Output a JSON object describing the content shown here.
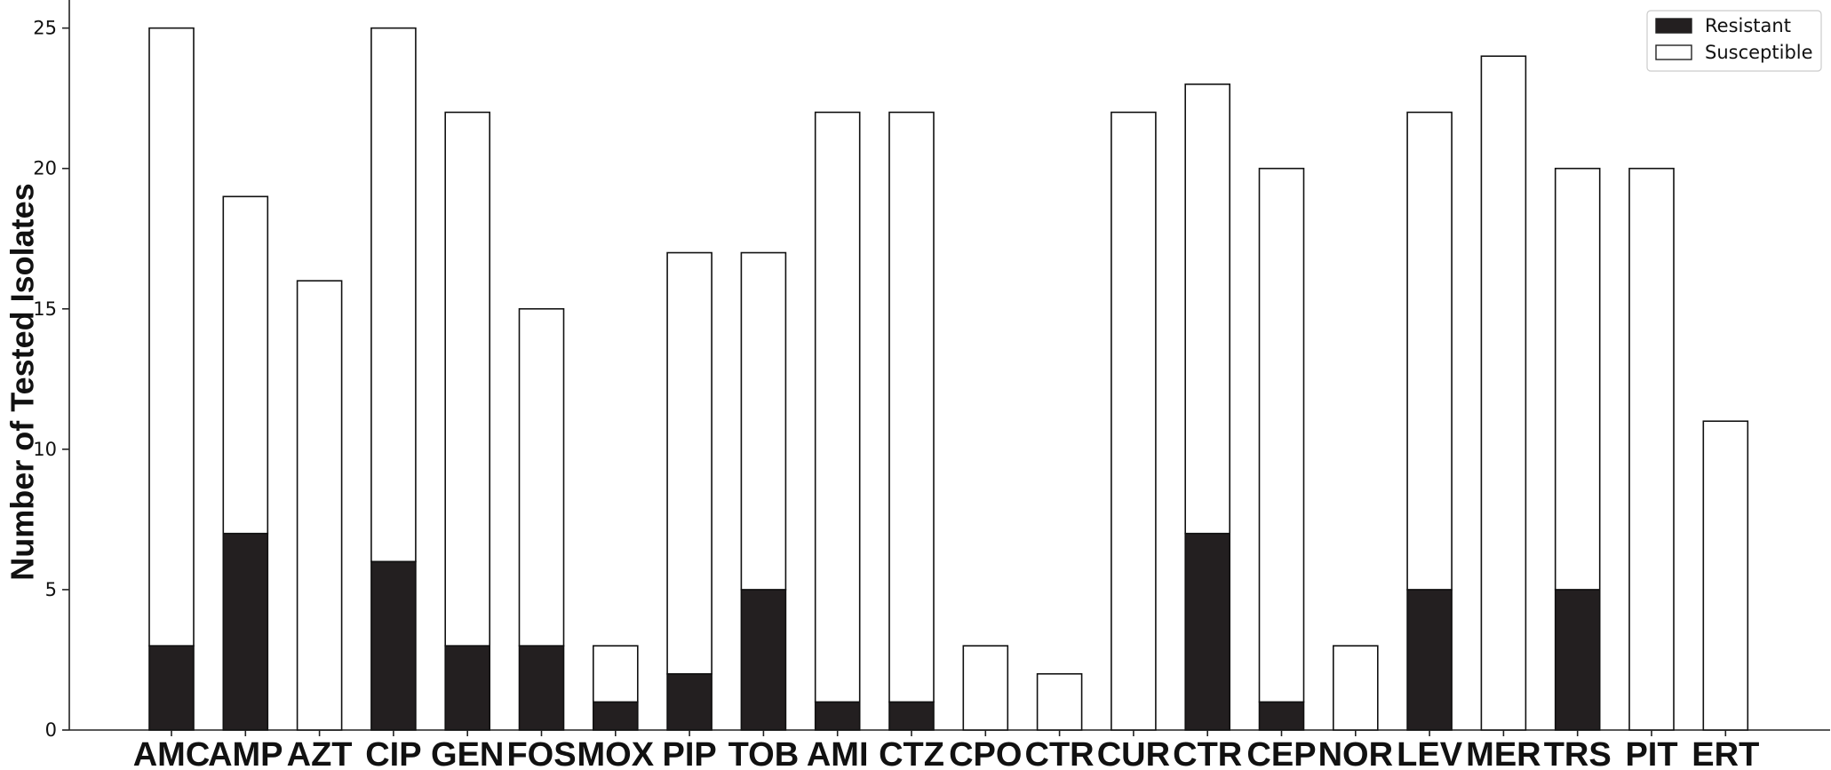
{
  "chart_data": {
    "type": "bar",
    "stacked": true,
    "title": "",
    "xlabel": "",
    "ylabel": "Number of Tested Isolates",
    "ylim": [
      0,
      26
    ],
    "yticks": [
      0,
      5,
      10,
      15,
      20,
      25
    ],
    "grid": false,
    "legend_position": "top-right",
    "categories": [
      "AMC",
      "AMP",
      "AZT",
      "CIP",
      "GEN",
      "FOS",
      "MOX",
      "PIP",
      "TOB",
      "AMI",
      "CTZ",
      "CPO",
      "CTR",
      "CUR",
      "CTR",
      "CEP",
      "NOR",
      "LEV",
      "MER",
      "TRS",
      "PIT",
      "ERT"
    ],
    "series": [
      {
        "name": "Resistant",
        "color": "#231f20",
        "values": [
          3,
          7,
          0,
          6,
          3,
          3,
          1,
          2,
          5,
          1,
          1,
          0,
          0,
          0,
          7,
          1,
          0,
          5,
          0,
          5,
          0,
          0
        ]
      },
      {
        "name": "Susceptible",
        "color": "#ffffff",
        "values": [
          22,
          12,
          16,
          19,
          19,
          12,
          2,
          15,
          12,
          21,
          21,
          3,
          2,
          22,
          16,
          19,
          3,
          17,
          24,
          15,
          20,
          11
        ]
      }
    ]
  }
}
